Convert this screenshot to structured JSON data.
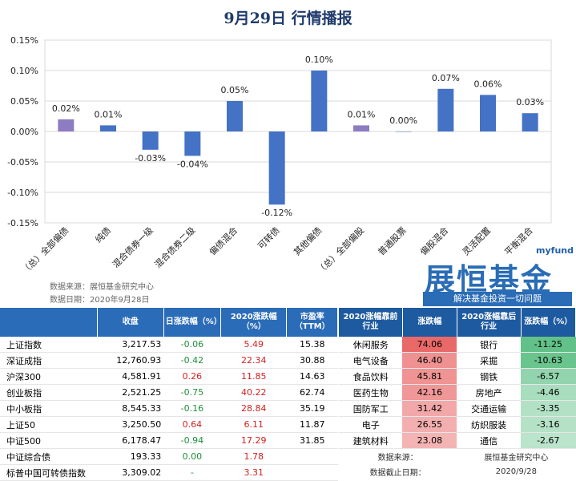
{
  "title": "9月29日   行情播报",
  "chart_data": {
    "type": "bar",
    "categories": [
      "（总）全部偏债",
      "纯债",
      "混合债券一级",
      "混合债券二级",
      "偏债混合",
      "可转债",
      "其他偏债",
      "（总）全部偏股",
      "普通股票",
      "偏股混合",
      "灵活配置",
      "平衡混合"
    ],
    "values": [
      0.02,
      0.01,
      -0.03,
      -0.04,
      0.05,
      -0.12,
      0.1,
      0.01,
      0.0,
      0.07,
      0.06,
      0.03
    ],
    "value_labels": [
      "0.02%",
      "0.01%",
      "-0.03%",
      "-0.04%",
      "0.05%",
      "-0.12%",
      "0.10%",
      "0.01%",
      "0.00%",
      "0.07%",
      "0.06%",
      "0.03%"
    ],
    "bar_colors": [
      "#8e7cc3",
      "#4472c4",
      "#4472c4",
      "#4472c4",
      "#4472c4",
      "#4472c4",
      "#4472c4",
      "#8e7cc3",
      "#4472c4",
      "#4472c4",
      "#4472c4",
      "#4472c4"
    ],
    "ylim": [
      -0.15,
      0.15
    ],
    "yticks": [
      0.15,
      0.1,
      0.05,
      0.0,
      -0.05,
      -0.1,
      -0.15
    ],
    "ytick_labels": [
      "0.15%",
      "0.10%",
      "0.05%",
      "0.00%",
      "-0.05%",
      "-0.10%",
      "-0.15%"
    ],
    "grid": true,
    "xlabel": "",
    "ylabel": ""
  },
  "source_line1": "数据来源：展恒基金研究中心",
  "source_line2": "数据日期：2020年9月28日",
  "logo": {
    "en": "myfund",
    "cn": "展恒基金",
    "slogan": "解决基金投资一切问题"
  },
  "left_table": {
    "headers": [
      "",
      "收盘",
      "日涨跌幅（%）",
      "2020涨跌幅（%）",
      "市盈率（TTM）"
    ],
    "rows": [
      {
        "name": "上证指数",
        "close": "3,217.53",
        "day": "-0.06",
        "ytd": "5.49",
        "pe": "15.38"
      },
      {
        "name": "深证成指",
        "close": "12,760.93",
        "day": "-0.42",
        "ytd": "22.34",
        "pe": "30.88"
      },
      {
        "name": "沪深300",
        "close": "4,581.91",
        "day": "0.26",
        "ytd": "11.85",
        "pe": "14.63"
      },
      {
        "name": "创业板指",
        "close": "2,521.25",
        "day": "-0.75",
        "ytd": "40.22",
        "pe": "62.74"
      },
      {
        "name": "中小板指",
        "close": "8,545.33",
        "day": "-0.16",
        "ytd": "28.84",
        "pe": "35.19"
      },
      {
        "name": "上证50",
        "close": "3,250.50",
        "day": "0.64",
        "ytd": "6.11",
        "pe": "11.87"
      },
      {
        "name": "中证500",
        "close": "6,178.47",
        "day": "-0.94",
        "ytd": "17.29",
        "pe": "31.85"
      },
      {
        "name": "中证综合债",
        "close": "193.33",
        "day": "0.00",
        "ytd": "1.78",
        "pe": ""
      },
      {
        "name": "标普中国可转债指数",
        "close": "3,309.02",
        "day": "-",
        "ytd": "3.31",
        "pe": ""
      }
    ]
  },
  "right_table": {
    "headers": [
      "2020涨幅靠前行业",
      "涨跌幅",
      "2020涨幅靠后行业",
      "涨跌幅（%）"
    ],
    "rows": [
      {
        "top": "休闲服务",
        "top_val": "74.06",
        "bot": "银行",
        "bot_val": "-11.25"
      },
      {
        "top": "电气设备",
        "top_val": "46.40",
        "bot": "采掘",
        "bot_val": "-10.63"
      },
      {
        "top": "食品饮料",
        "top_val": "45.81",
        "bot": "钢铁",
        "bot_val": "-6.57"
      },
      {
        "top": "医药生物",
        "top_val": "42.16",
        "bot": "房地产",
        "bot_val": "-4.46"
      },
      {
        "top": "国防军工",
        "top_val": "31.42",
        "bot": "交通运输",
        "bot_val": "-3.35"
      },
      {
        "top": "电子",
        "top_val": "26.55",
        "bot": "纺织服装",
        "bot_val": "-3.16"
      },
      {
        "top": "建筑材料",
        "top_val": "23.08",
        "bot": "通信",
        "bot_val": "-2.67"
      }
    ],
    "footer": [
      {
        "label": "数据来源：",
        "value": "展恒基金研究中心"
      },
      {
        "label": "数据截止日期：",
        "value": "2020/9/28"
      }
    ]
  }
}
